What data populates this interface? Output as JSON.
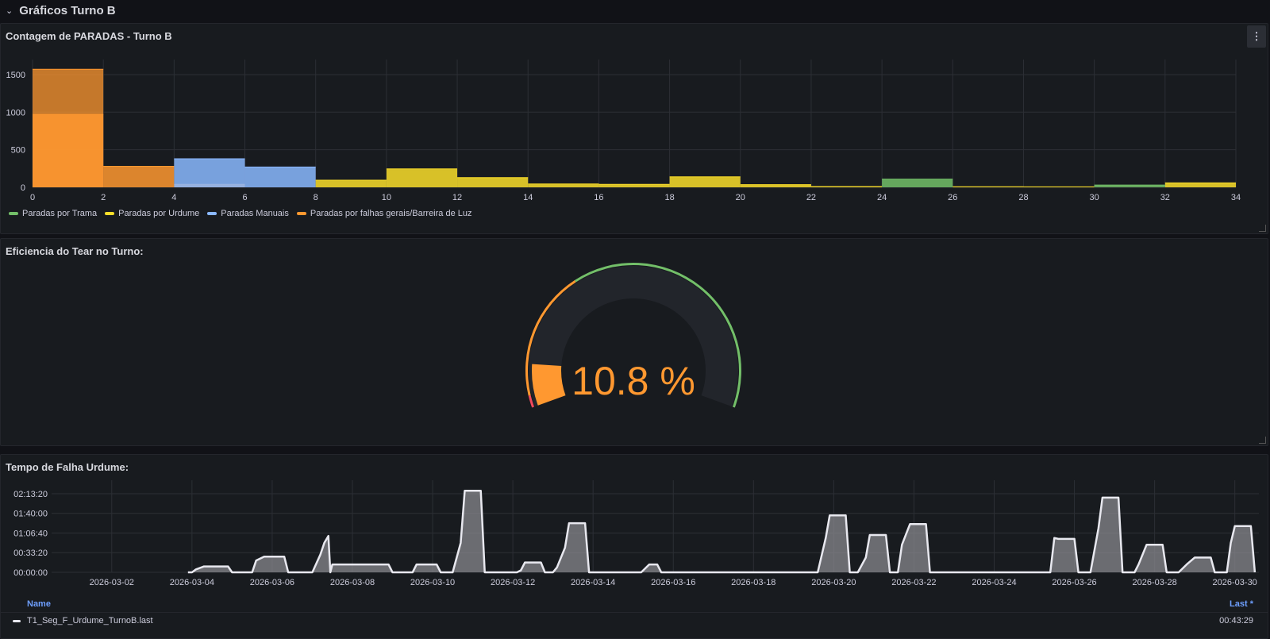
{
  "row": {
    "title": "Gráficos Turno B",
    "chevron": "⌄"
  },
  "panel1": {
    "title": "Contagem de PARADAS - Turno B",
    "menu_glyph": "⋮",
    "chart_data": {
      "type": "bar",
      "subtype": "stacked-histogram",
      "x_ticks": [
        "0",
        "2",
        "4",
        "6",
        "8",
        "10",
        "12",
        "14",
        "16",
        "18",
        "20",
        "22",
        "24",
        "26",
        "28",
        "30",
        "32",
        "34"
      ],
      "y_ticks": [
        "0",
        "500",
        "1000",
        "1500"
      ],
      "xlim": [
        0,
        34
      ],
      "ylim": [
        0,
        1700
      ],
      "legend_position": "bottom-left",
      "series": [
        {
          "name": "Paradas por Trama",
          "color": "#73bf69",
          "bins": [
            [
              24,
              26,
              110
            ],
            [
              30,
              32,
              30
            ]
          ]
        },
        {
          "name": "Paradas por Urdume",
          "color": "#fade2a",
          "bins": [
            [
              8,
              10,
              95
            ],
            [
              10,
              12,
              245
            ],
            [
              12,
              14,
              130
            ],
            [
              14,
              16,
              45
            ],
            [
              16,
              18,
              40
            ],
            [
              18,
              20,
              140
            ],
            [
              20,
              22,
              35
            ],
            [
              22,
              24,
              10
            ],
            [
              26,
              28,
              8
            ],
            [
              28,
              30,
              6
            ],
            [
              32,
              34,
              60
            ]
          ]
        },
        {
          "name": "Paradas Manuais",
          "color": "#8ab8ff",
          "bins": [
            [
              4,
              6,
              380
            ],
            [
              6,
              8,
              270
            ]
          ]
        },
        {
          "name": "Paradas por falhas gerais/Barreira de Luz",
          "color": "#ff9830",
          "bins": [
            [
              0,
              2,
              1570
            ],
            [
              0,
              2,
              970
            ],
            [
              2,
              4,
              280
            ],
            [
              4,
              6,
              40
            ]
          ]
        }
      ]
    }
  },
  "panel2": {
    "title": "Eficiencia do Tear no Turno:",
    "gauge": {
      "value": 10.8,
      "display": "10.8 %",
      "min": 0,
      "max": 100,
      "thresholds": [
        {
          "from": 0,
          "to": 3,
          "color": "#f2495c"
        },
        {
          "from": 3,
          "to": 35,
          "color": "#ff9830"
        },
        {
          "from": 35,
          "to": 100,
          "color": "#73bf69"
        }
      ],
      "value_color": "#ff9830"
    }
  },
  "panel3": {
    "title": "Tempo de Falha Urdume:",
    "chart_data": {
      "type": "area",
      "y_ticks": [
        "00:00:00",
        "00:33:20",
        "01:06:40",
        "01:40:00",
        "02:13:20"
      ],
      "x_ticks": [
        "2026-03-02",
        "2026-03-04",
        "2026-03-06",
        "2026-03-08",
        "2026-03-10",
        "2026-03-12",
        "2026-03-14",
        "2026-03-16",
        "2026-03-18",
        "2026-03-20",
        "2026-03-22",
        "2026-03-24",
        "2026-03-26",
        "2026-03-28",
        "2026-03-30"
      ],
      "ylim_seconds": [
        0,
        8400
      ],
      "xlim_days": [
        0.5,
        30.6
      ],
      "series": [
        {
          "name": "T1_Seg_F_Urdume_TurnoB.last",
          "color": "#e8e8ef",
          "points": [
            [
              3.9,
              0
            ],
            [
              4.0,
              0
            ],
            [
              4.1,
              300
            ],
            [
              4.3,
              600
            ],
            [
              4.9,
              600
            ],
            [
              5.0,
              0
            ],
            [
              5.5,
              0
            ],
            [
              5.6,
              1200
            ],
            [
              5.8,
              1600
            ],
            [
              6.3,
              1600
            ],
            [
              6.4,
              0
            ],
            [
              7.0,
              0
            ],
            [
              7.2,
              1800
            ],
            [
              7.3,
              3000
            ],
            [
              7.4,
              3700
            ],
            [
              7.45,
              0
            ],
            [
              7.5,
              800
            ],
            [
              8.9,
              800
            ],
            [
              9.0,
              0
            ],
            [
              9.5,
              0
            ],
            [
              9.6,
              800
            ],
            [
              10.1,
              800
            ],
            [
              10.2,
              0
            ],
            [
              10.5,
              0
            ],
            [
              10.7,
              3000
            ],
            [
              10.8,
              8300
            ],
            [
              11.2,
              8300
            ],
            [
              11.3,
              0
            ],
            [
              12.1,
              0
            ],
            [
              12.2,
              200
            ],
            [
              12.3,
              1000
            ],
            [
              12.7,
              1000
            ],
            [
              12.8,
              0
            ],
            [
              13.0,
              0
            ],
            [
              13.1,
              500
            ],
            [
              13.3,
              2500
            ],
            [
              13.4,
              5000
            ],
            [
              13.8,
              5000
            ],
            [
              13.9,
              0
            ],
            [
              15.2,
              0
            ],
            [
              15.4,
              800
            ],
            [
              15.6,
              800
            ],
            [
              15.7,
              0
            ],
            [
              19.6,
              0
            ],
            [
              19.8,
              3500
            ],
            [
              19.9,
              5800
            ],
            [
              20.3,
              5800
            ],
            [
              20.4,
              0
            ],
            [
              20.6,
              0
            ],
            [
              20.8,
              1500
            ],
            [
              20.9,
              3800
            ],
            [
              21.3,
              3800
            ],
            [
              21.4,
              0
            ],
            [
              21.6,
              0
            ],
            [
              21.7,
              2800
            ],
            [
              21.9,
              4900
            ],
            [
              22.3,
              4900
            ],
            [
              22.4,
              0
            ],
            [
              25.4,
              0
            ],
            [
              25.5,
              3500
            ],
            [
              25.6,
              3400
            ],
            [
              26.0,
              3400
            ],
            [
              26.1,
              0
            ],
            [
              26.4,
              0
            ],
            [
              26.6,
              4500
            ],
            [
              26.7,
              7600
            ],
            [
              27.1,
              7600
            ],
            [
              27.2,
              0
            ],
            [
              27.5,
              0
            ],
            [
              27.6,
              800
            ],
            [
              27.8,
              2800
            ],
            [
              28.2,
              2800
            ],
            [
              28.3,
              0
            ],
            [
              28.6,
              0
            ],
            [
              28.8,
              800
            ],
            [
              29.0,
              1500
            ],
            [
              29.4,
              1500
            ],
            [
              29.5,
              0
            ],
            [
              29.8,
              0
            ],
            [
              29.9,
              3000
            ],
            [
              30.0,
              4700
            ],
            [
              30.4,
              4700
            ],
            [
              30.5,
              0
            ]
          ]
        }
      ]
    },
    "table": {
      "name_header": "Name",
      "last_header": "Last *",
      "row_name": "T1_Seg_F_Urdume_TurnoB.last",
      "row_last": "00:43:29"
    }
  }
}
